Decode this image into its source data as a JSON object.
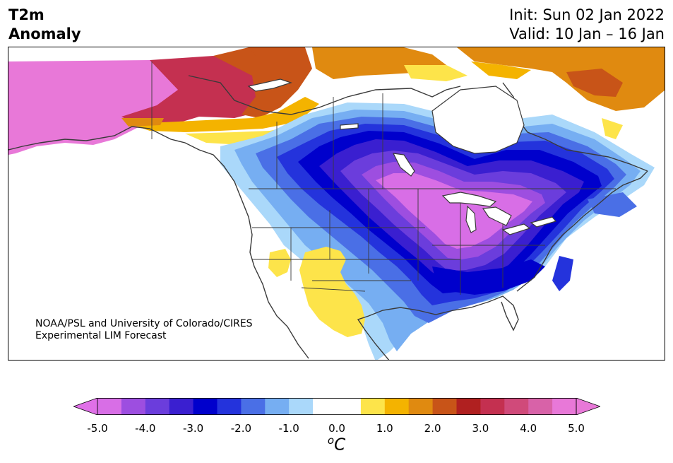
{
  "title": {
    "line1": "T2m",
    "line2": "Anomaly"
  },
  "dates": {
    "init": "Init: Sun 02 Jan 2022",
    "valid": "Valid: 10 Jan – 16 Jan"
  },
  "credit": {
    "line1": "NOAA/PSL and University of Colorado/CIRES",
    "line2": "Experimental LIM Forecast"
  },
  "colorbar": {
    "unit_sup": "o",
    "unit_main": "C",
    "ticks": [
      "-5.0",
      "-4.0",
      "-3.0",
      "-2.0",
      "-1.0",
      "0.0",
      "1.0",
      "2.0",
      "3.0",
      "4.0",
      "5.0"
    ],
    "colors": [
      "#d86ee6",
      "#9d4ee0",
      "#6b3ddc",
      "#3a1fd0",
      "#0000cc",
      "#2433dc",
      "#4a6fe6",
      "#76aef2",
      "#aad8fa",
      "#ffffff",
      "#ffffff",
      "#fde44a",
      "#f4b300",
      "#e08a10",
      "#c85418",
      "#b02020",
      "#c43050",
      "#d04a7a",
      "#d862a8",
      "#e878d8"
    ],
    "under_color": "#e070e8",
    "over_color": "#e878d8"
  },
  "map_colors": {
    "land_line": "#3a3a3a",
    "cold_1": "#aad8fa",
    "cold_2": "#76aef2",
    "cold_3": "#4a6fe6",
    "cold_4": "#2433dc",
    "cold_5": "#0000cc",
    "cold_6": "#3a1fd0",
    "cold_7": "#6b3ddc",
    "cold_8": "#9d4ee0",
    "cold_9": "#d86ee6",
    "warm_1": "#fde44a",
    "warm_2": "#f4b300",
    "warm_3": "#e08a10",
    "warm_4": "#c85418",
    "warm_5": "#b02020",
    "warm_6": "#c43050",
    "warm_7": "#d04a7a",
    "warm_8": "#d862a8",
    "warm_9": "#e878d8"
  }
}
